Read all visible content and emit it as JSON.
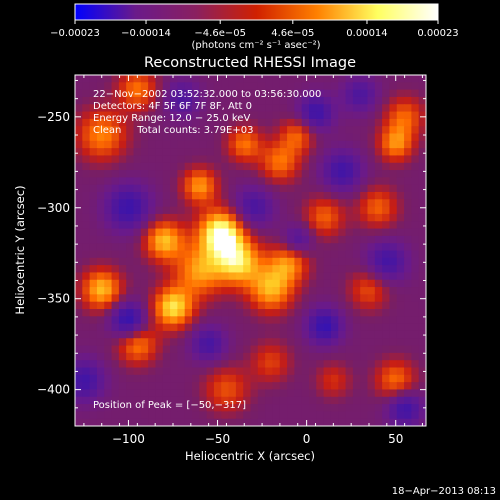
{
  "chart_data": {
    "type": "heatmap",
    "title": "Reconstructed RHESSI Image",
    "xlabel": "Heliocentric X (arcsec)",
    "ylabel": "Heliocentric Y (arcsec)",
    "xlim": [
      -130,
      67
    ],
    "ylim": [
      -420,
      -227
    ],
    "x_ticks": [
      -100,
      -50,
      0,
      50
    ],
    "x_tick_labels": [
      "−100",
      "−50",
      "0",
      "50"
    ],
    "y_ticks": [
      -250,
      -300,
      -350,
      -400
    ],
    "y_tick_labels": [
      "−250",
      "−300",
      "−350",
      "−400"
    ],
    "colorbar": {
      "range": [
        -0.00023,
        0.00023
      ],
      "tick_values": [
        -0.00023,
        -0.00014,
        -4.6e-05,
        4.6e-05,
        0.00014,
        0.00023
      ],
      "tick_labels": [
        "−0.00023",
        "−0.00014",
        "−4.6e−05",
        "4.6e−05",
        "0.00014",
        "0.00023"
      ],
      "units": "(photons cm⁻² s⁻¹ asec⁻²)",
      "colors": [
        "#0000ff",
        "#6a1a8a",
        "#8a2060",
        "#d02000",
        "#ff8000",
        "#ffff60",
        "#ffffff"
      ]
    },
    "info_lines": [
      "22−Nov−2002 03:52:32.000 to 03:56:30.000",
      "Detectors: 4F 5F 6F 7F 8F, Att 0",
      "Energy Range: 12.0 − 25.0 keV",
      "Clean     Total counts: 3.79E+03"
    ],
    "peak_label": "Position of Peak = [−50,−317]",
    "peak": [
      -50,
      -317
    ],
    "blobs": [
      {
        "x": -48,
        "y": -314,
        "v": 1.0,
        "s": 9
      },
      {
        "x": -38,
        "y": -330,
        "v": 0.75,
        "s": 9
      },
      {
        "x": -60,
        "y": -335,
        "v": 0.6,
        "s": 10
      },
      {
        "x": -80,
        "y": -318,
        "v": 0.7,
        "s": 8
      },
      {
        "x": -60,
        "y": -288,
        "v": 0.6,
        "s": 7
      },
      {
        "x": -115,
        "y": -345,
        "v": 0.7,
        "s": 8
      },
      {
        "x": -115,
        "y": -260,
        "v": 0.55,
        "s": 10
      },
      {
        "x": -95,
        "y": -235,
        "v": 0.5,
        "s": 8
      },
      {
        "x": -95,
        "y": -375,
        "v": 0.55,
        "s": 8
      },
      {
        "x": -75,
        "y": -355,
        "v": 0.8,
        "s": 8
      },
      {
        "x": -20,
        "y": -345,
        "v": 0.65,
        "s": 9
      },
      {
        "x": -10,
        "y": -330,
        "v": 0.55,
        "s": 8
      },
      {
        "x": 10,
        "y": -305,
        "v": 0.45,
        "s": 8
      },
      {
        "x": -15,
        "y": -275,
        "v": 0.5,
        "s": 8
      },
      {
        "x": -5,
        "y": -260,
        "v": 0.45,
        "s": 7
      },
      {
        "x": -35,
        "y": -265,
        "v": 0.5,
        "s": 7
      },
      {
        "x": 40,
        "y": -300,
        "v": 0.45,
        "s": 8
      },
      {
        "x": 55,
        "y": -250,
        "v": 0.45,
        "s": 8
      },
      {
        "x": 50,
        "y": -265,
        "v": 0.55,
        "s": 7
      },
      {
        "x": 35,
        "y": -345,
        "v": 0.4,
        "s": 8
      },
      {
        "x": 50,
        "y": -395,
        "v": 0.5,
        "s": 8
      },
      {
        "x": -45,
        "y": -400,
        "v": 0.4,
        "s": 9
      },
      {
        "x": -20,
        "y": -385,
        "v": 0.35,
        "s": 8
      },
      {
        "x": 15,
        "y": -395,
        "v": 0.3,
        "s": 7
      },
      {
        "x": -100,
        "y": -300,
        "v": -0.55,
        "s": 9
      },
      {
        "x": -30,
        "y": -300,
        "v": -0.45,
        "s": 8
      },
      {
        "x": -100,
        "y": -362,
        "v": -0.7,
        "s": 7
      },
      {
        "x": 10,
        "y": -365,
        "v": -0.6,
        "s": 7
      },
      {
        "x": 5,
        "y": -248,
        "v": -0.55,
        "s": 7
      },
      {
        "x": 20,
        "y": -280,
        "v": -0.5,
        "s": 8
      },
      {
        "x": -5,
        "y": -318,
        "v": -0.45,
        "s": 6
      },
      {
        "x": 45,
        "y": -330,
        "v": -0.5,
        "s": 8
      },
      {
        "x": 55,
        "y": -410,
        "v": -0.55,
        "s": 7
      },
      {
        "x": -70,
        "y": -240,
        "v": -0.4,
        "s": 7
      },
      {
        "x": -125,
        "y": -395,
        "v": -0.5,
        "s": 8
      },
      {
        "x": -55,
        "y": -375,
        "v": -0.45,
        "s": 7
      },
      {
        "x": 30,
        "y": -238,
        "v": -0.4,
        "s": 7
      }
    ]
  },
  "timestamp": "18−Apr−2013 08:13"
}
